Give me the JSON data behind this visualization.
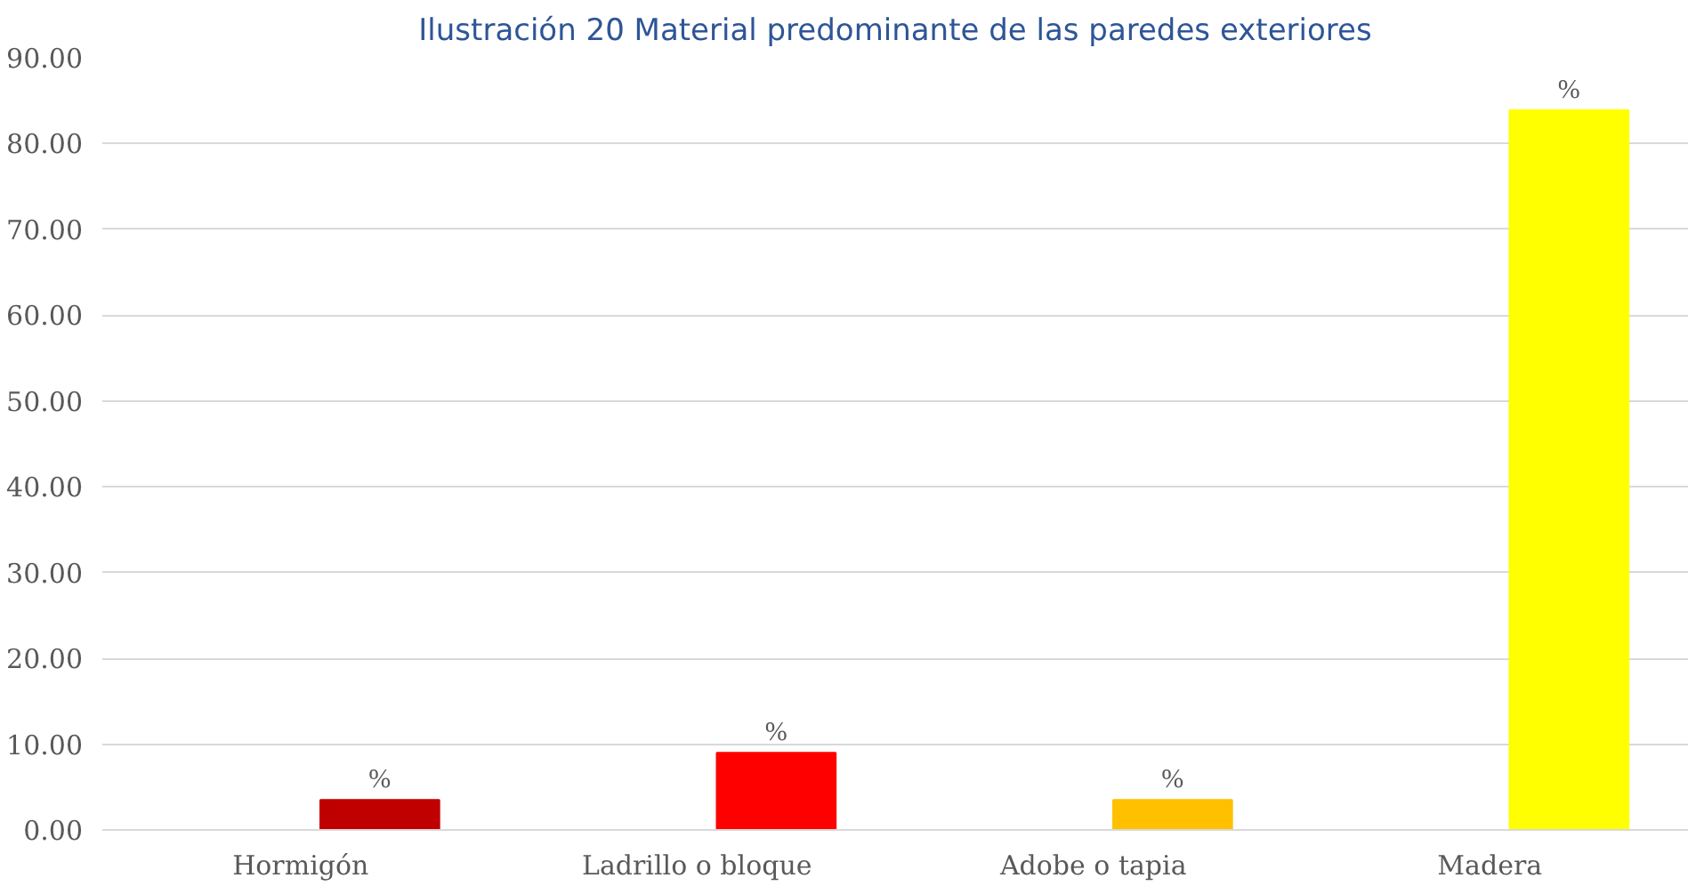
{
  "chart_data": {
    "type": "bar",
    "title": "Ilustración 20 Material predominante de las paredes exteriores",
    "categories": [
      "Hormigón",
      "Ladrillo o bloque",
      "Adobe o tapia",
      "Madera"
    ],
    "values": [
      3.5,
      9.0,
      3.5,
      83.9
    ],
    "colors": [
      "#c00000",
      "#ff0000",
      "#ffc000",
      "#ffff00"
    ],
    "value_labels": [
      "%",
      "%",
      "%",
      "%"
    ],
    "ylim": [
      0,
      90
    ],
    "yticks": [
      {
        "value": 0,
        "label": "0.00"
      },
      {
        "value": 10,
        "label": "10.00"
      },
      {
        "value": 20,
        "label": "20.00"
      },
      {
        "value": 30,
        "label": "30.00"
      },
      {
        "value": 40,
        "label": "40.00"
      },
      {
        "value": 50,
        "label": "50.00"
      },
      {
        "value": 60,
        "label": "60.00"
      },
      {
        "value": 70,
        "label": "70.00"
      },
      {
        "value": 80,
        "label": "80.00"
      },
      {
        "value": 90,
        "label": "90.00"
      }
    ],
    "grid": "y"
  }
}
